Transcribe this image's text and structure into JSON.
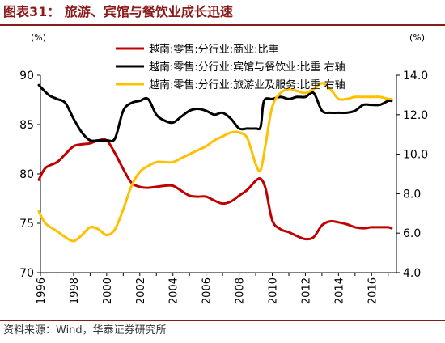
{
  "header": {
    "title": "图表31： 旅游、宾馆与餐饮业成长迅速"
  },
  "footer": {
    "source": "资料来源：Wind，华泰证券研究所"
  },
  "colors": {
    "title": "#8b1a1a",
    "axis": "#000000"
  },
  "chart_data": {
    "type": "line",
    "title": "",
    "left_axis": {
      "unit_label": "(%)",
      "ylim": [
        70,
        90
      ],
      "ticks": [
        70,
        75,
        80,
        85,
        90
      ]
    },
    "right_axis": {
      "unit_label": "(%)",
      "ylim": [
        4.0,
        14.0
      ],
      "ticks": [
        4.0,
        6.0,
        8.0,
        10.0,
        12.0,
        14.0
      ],
      "tick_labels": [
        "4.0",
        "6.0",
        "8.0",
        "10.0",
        "12.0",
        "14.0"
      ]
    },
    "x_axis": {
      "xlim": [
        1996,
        2017.5
      ],
      "tick_labels": [
        "1996",
        "1998",
        "2000",
        "2002",
        "2004",
        "2006",
        "2008",
        "2010",
        "2012",
        "2014",
        "2016"
      ],
      "tick_values": [
        1996,
        1998,
        2000,
        2002,
        2004,
        2006,
        2008,
        2010,
        2012,
        2014,
        2016
      ]
    },
    "legend_position": "top-right",
    "series": [
      {
        "name": "越南:零售:分行业:商业:比重",
        "axis": "left",
        "color": "#c00000",
        "x": [
          1995.9,
          1996.3,
          1997,
          1997.5,
          1998,
          1998.5,
          1999,
          1999.5,
          2000,
          2000.5,
          2001,
          2001.5,
          2002,
          2002.5,
          2003,
          2003.5,
          2004,
          2004.5,
          2005,
          2005.5,
          2006,
          2006.5,
          2007,
          2007.5,
          2008,
          2008.5,
          2009,
          2009.3,
          2009.6,
          2010,
          2010.5,
          2011,
          2011.5,
          2012,
          2012.5,
          2013,
          2013.5,
          2014,
          2014.5,
          2015,
          2015.5,
          2016,
          2016.5,
          2017,
          2017.2
        ],
        "values": [
          79.4,
          80.6,
          81.2,
          82.0,
          82.8,
          83.0,
          83.1,
          83.4,
          83.4,
          82.1,
          80.5,
          79.1,
          78.7,
          78.6,
          78.7,
          78.8,
          78.8,
          78.3,
          77.8,
          77.7,
          77.7,
          77.3,
          77.0,
          77.2,
          77.8,
          78.4,
          79.3,
          79.5,
          78.5,
          75.3,
          74.4,
          74.1,
          73.7,
          73.4,
          73.6,
          74.8,
          75.2,
          75.1,
          74.9,
          74.6,
          74.5,
          74.6,
          74.6,
          74.6,
          74.5
        ]
      },
      {
        "name": "越南:零售:分行业:宾馆与餐饮业:比重 右轴",
        "axis": "right",
        "color": "#000000",
        "x": [
          1995.9,
          1996.5,
          1997,
          1997.5,
          1998,
          1998.5,
          1999,
          1999.5,
          2000,
          2000.5,
          2001,
          2001.5,
          2002,
          2002.5,
          2003,
          2003.5,
          2004,
          2004.5,
          2005,
          2005.5,
          2006,
          2006.5,
          2007,
          2007.5,
          2008,
          2008.5,
          2009,
          2009.3,
          2009.5,
          2010,
          2010.5,
          2011,
          2011.5,
          2012,
          2012.5,
          2013,
          2013.5,
          2014,
          2014.5,
          2015,
          2015.5,
          2016,
          2016.5,
          2017,
          2017.2
        ],
        "values": [
          13.5,
          13.0,
          12.8,
          12.6,
          11.8,
          11.1,
          10.7,
          10.7,
          10.7,
          10.8,
          12.2,
          12.6,
          12.7,
          12.8,
          12.0,
          11.7,
          11.6,
          11.9,
          12.2,
          12.3,
          12.2,
          12.0,
          12.1,
          11.8,
          11.3,
          11.3,
          11.3,
          11.4,
          12.7,
          12.8,
          12.9,
          12.8,
          12.9,
          12.9,
          13.1,
          12.2,
          12.1,
          12.1,
          12.1,
          12.2,
          12.5,
          12.5,
          12.5,
          12.7,
          12.7
        ]
      },
      {
        "name": "越南:零售:分行业:旅游业及服务:比重 右轴",
        "axis": "right",
        "color": "#ffc000",
        "x": [
          1995.9,
          1996.3,
          1997,
          1997.5,
          1998,
          1998.5,
          1999,
          1999.5,
          2000,
          2000.5,
          2001,
          2001.5,
          2002,
          2002.5,
          2003,
          2003.5,
          2004,
          2004.5,
          2005,
          2005.5,
          2006,
          2006.5,
          2007,
          2007.5,
          2008,
          2008.5,
          2009,
          2009.3,
          2009.6,
          2010,
          2010.5,
          2011,
          2011.5,
          2012,
          2012.5,
          2013,
          2013.5,
          2014,
          2014.5,
          2015,
          2015.5,
          2016,
          2016.5,
          2017,
          2017.2
        ],
        "values": [
          7.1,
          6.5,
          6.1,
          5.8,
          5.6,
          5.9,
          6.3,
          6.2,
          5.9,
          6.2,
          7.2,
          8.4,
          9.1,
          9.4,
          9.6,
          9.6,
          9.6,
          9.8,
          10.0,
          10.2,
          10.4,
          10.7,
          10.9,
          11.1,
          11.1,
          10.8,
          9.5,
          9.2,
          10.5,
          12.4,
          13.1,
          13.3,
          13.2,
          13.1,
          13.3,
          13.6,
          13.3,
          12.8,
          12.8,
          12.9,
          12.9,
          12.9,
          12.9,
          12.8,
          12.8
        ]
      }
    ]
  }
}
